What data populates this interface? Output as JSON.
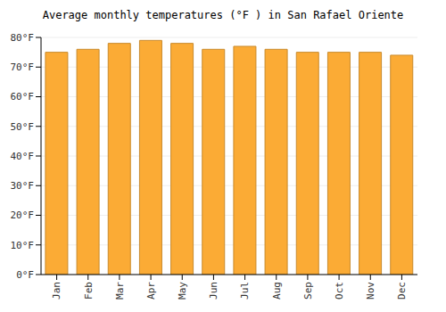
{
  "chart_data": {
    "type": "bar",
    "title": "Average monthly temperatures (°F ) in San Rafael Oriente",
    "categories": [
      "Jan",
      "Feb",
      "Mar",
      "Apr",
      "May",
      "Jun",
      "Jul",
      "Aug",
      "Sep",
      "Oct",
      "Nov",
      "Dec"
    ],
    "values": [
      75,
      76,
      78,
      79,
      78,
      76,
      77,
      76,
      75,
      75,
      75,
      74
    ],
    "color": "#fbab35",
    "ylim": [
      0,
      80
    ],
    "yticks": [
      {
        "value": 0,
        "label": "0°F"
      },
      {
        "value": 10,
        "label": "10°F"
      },
      {
        "value": 20,
        "label": "20°F"
      },
      {
        "value": 30,
        "label": "30°F"
      },
      {
        "value": 40,
        "label": "40°F"
      },
      {
        "value": 50,
        "label": "50°F"
      },
      {
        "value": 60,
        "label": "60°F"
      },
      {
        "value": 70,
        "label": "70°F"
      },
      {
        "value": 80,
        "label": "80°F"
      }
    ],
    "grid": true
  }
}
